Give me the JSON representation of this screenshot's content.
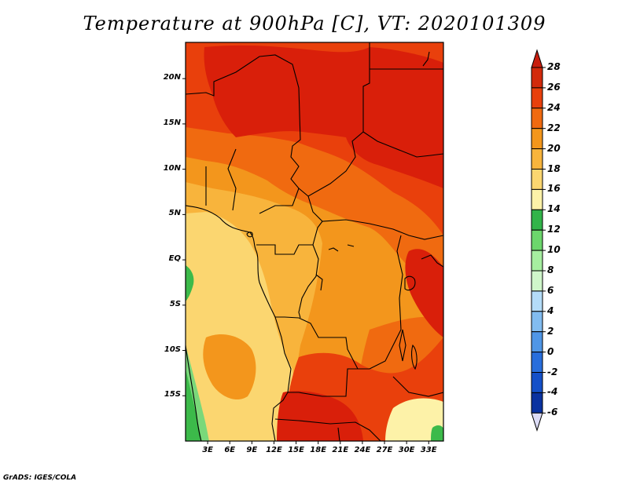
{
  "title": "Temperature at 900hPa [C], VT: 2020101309",
  "footer": "GrADS: IGES/COLA",
  "map": {
    "lon_range": [
      0,
      35
    ],
    "lat_range": [
      -20,
      24
    ],
    "lat_labels": [
      "20N",
      "15N",
      "10N",
      "5N",
      "EQ",
      "5S",
      "10S",
      "15S"
    ],
    "lon_labels": [
      "3E",
      "6E",
      "9E",
      "12E",
      "15E",
      "18E",
      "21E",
      "24E",
      "27E",
      "30E",
      "33E"
    ]
  },
  "colorbar": {
    "labels": [
      "28",
      "26",
      "24",
      "22",
      "20",
      "18",
      "16",
      "14",
      "12",
      "10",
      "8",
      "6",
      "4",
      "2",
      "0",
      "-2",
      "-4",
      "-6"
    ],
    "colors": [
      "#d22a0c",
      "#e8400c",
      "#f06a10",
      "#f3961c",
      "#f8b43c",
      "#fbd670",
      "#fdf2a8",
      "#32b44a",
      "#6cd66c",
      "#a6eea0",
      "#cff6ca",
      "#b4dcf8",
      "#82bcf0",
      "#5096e6",
      "#286edc",
      "#1450c8",
      "#0a32a0",
      "#060c6a"
    ],
    "arrow_top_color": "#c81e0e",
    "arrow_bottom_color": "#dcdcf6"
  },
  "colors": {
    "deep_red": "#d91f0a",
    "red": "#e9400c",
    "red_orange": "#f06a10",
    "orange": "#f3961c",
    "light_orange": "#f8b43c",
    "yellow": "#fbd670",
    "pale": "#fdf2a8",
    "green": "#3cba4a",
    "light_green": "#7ad87a"
  }
}
